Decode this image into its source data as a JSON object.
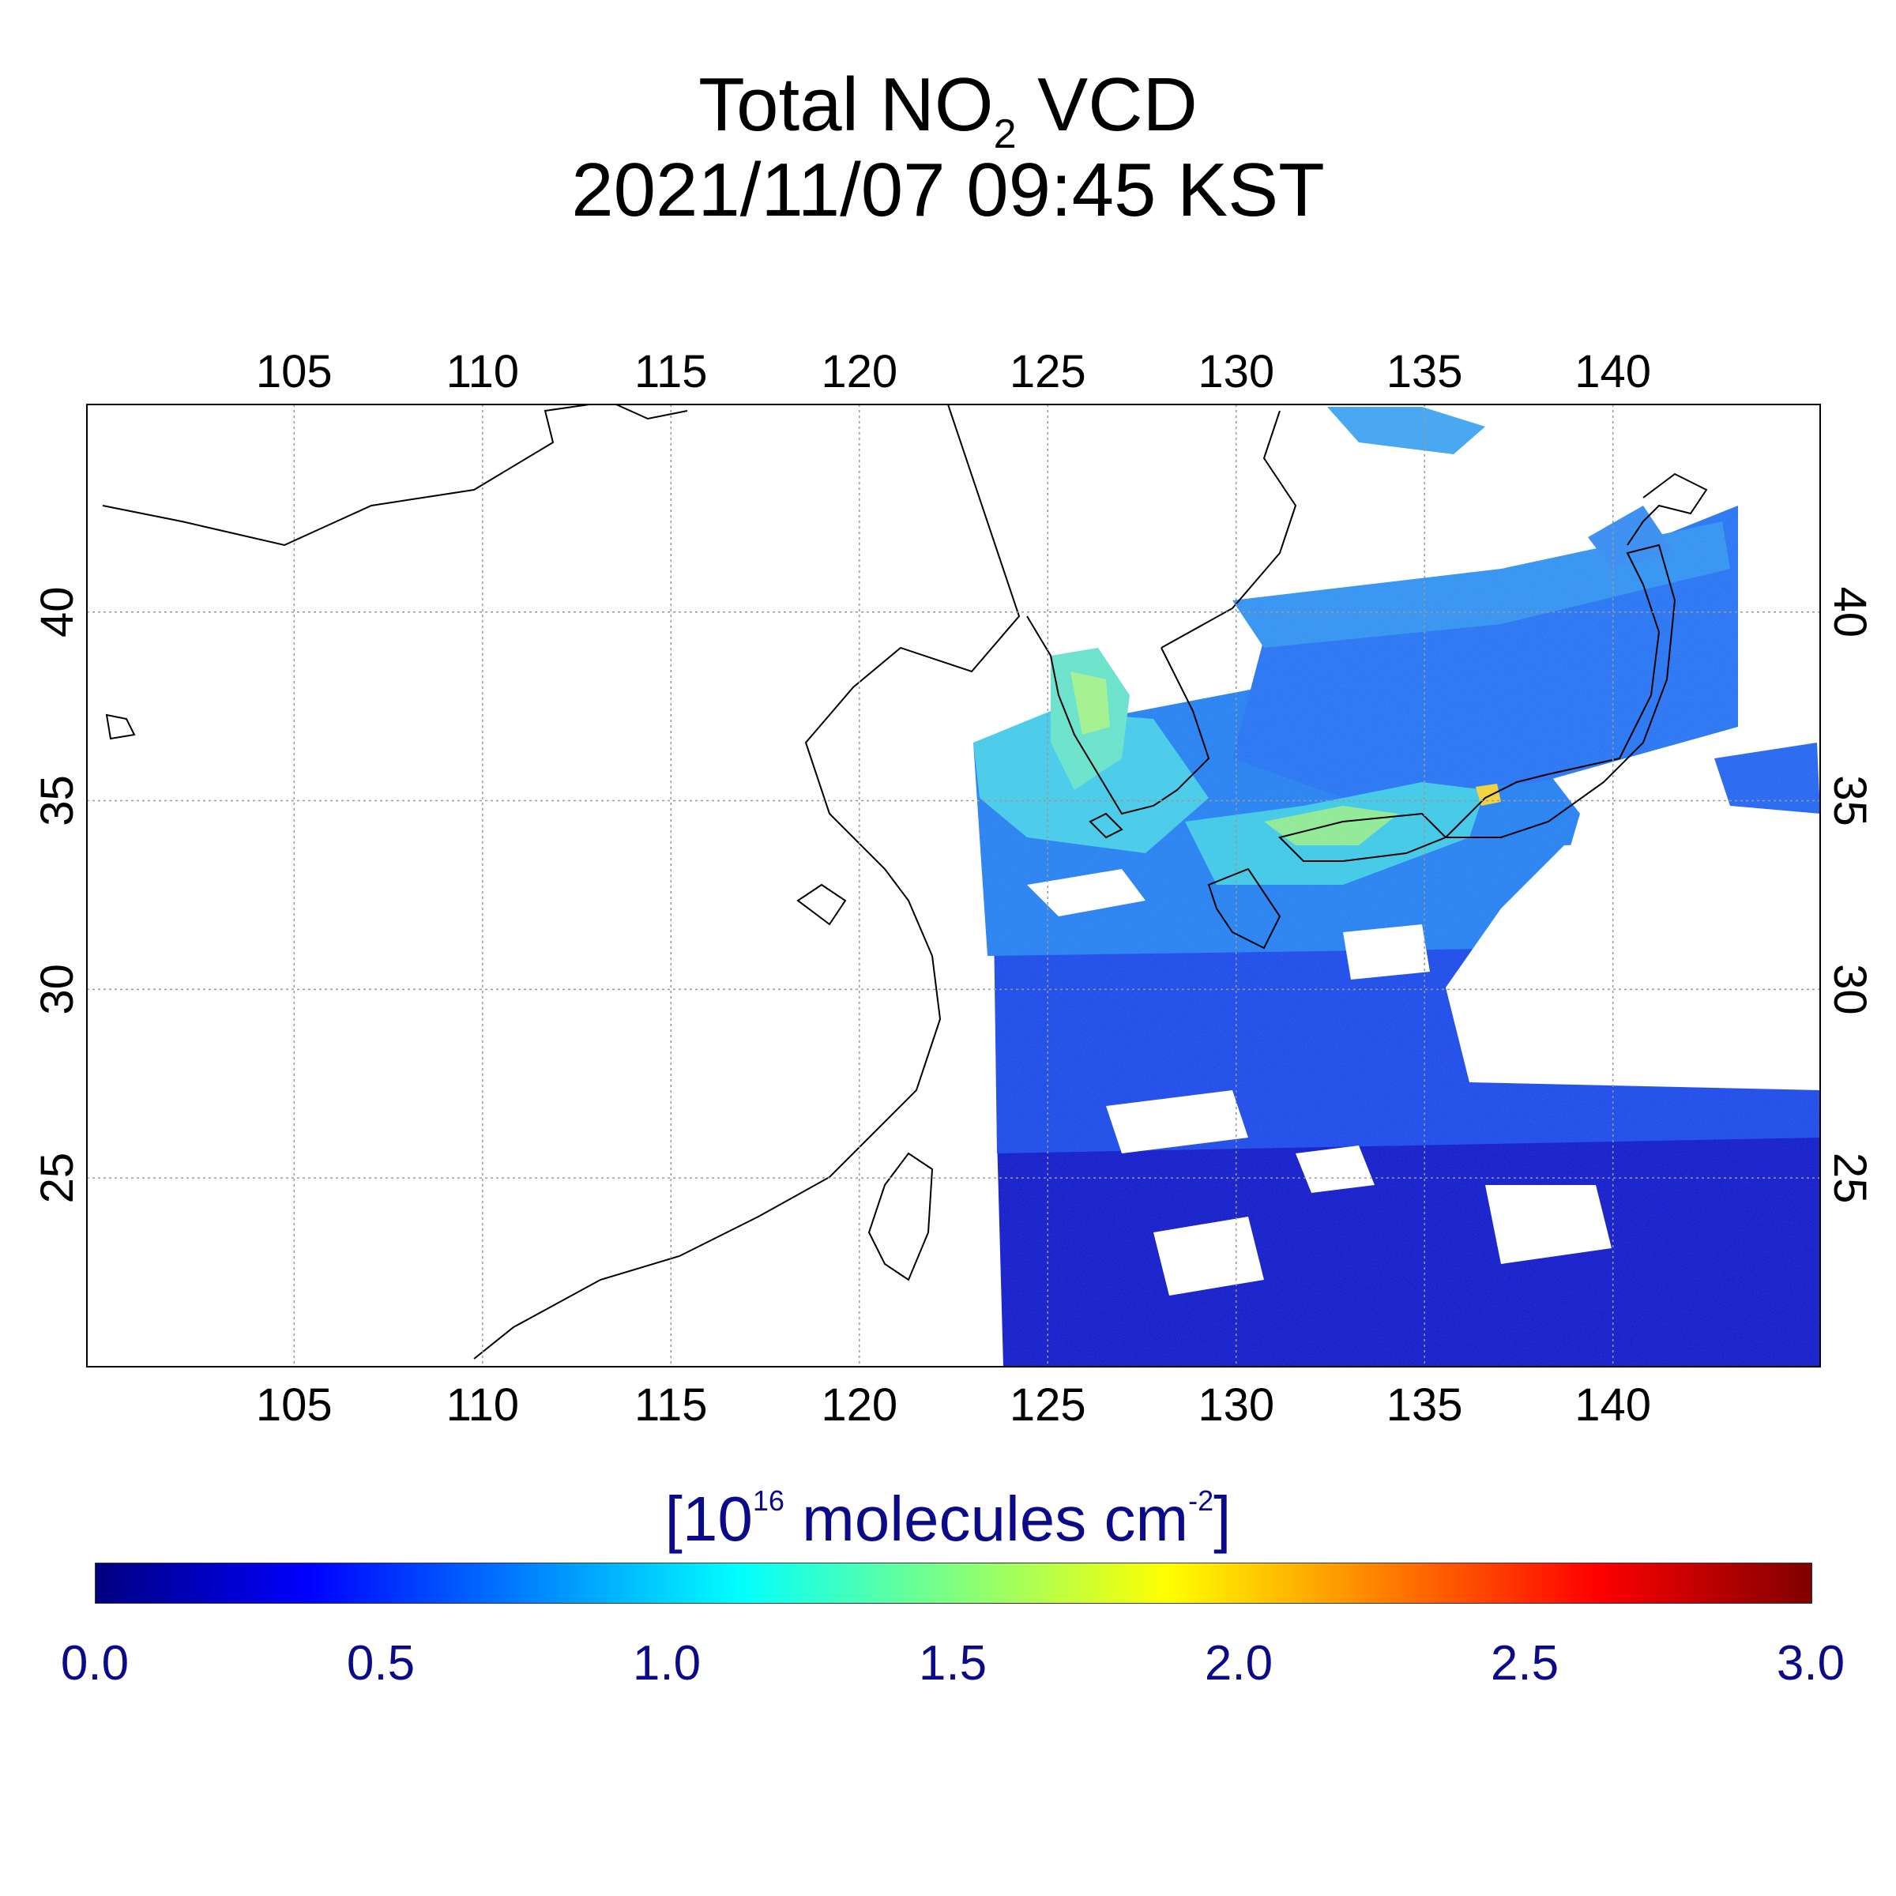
{
  "title": {
    "main": "Total NO",
    "sub": "2",
    "tail": " VCD",
    "datetime": "2021/11/07 09:45 KST"
  },
  "map": {
    "lon_range": [
      99.5,
      145.5
    ],
    "lat_range": [
      20.0,
      45.5
    ],
    "lon_ticks": [
      "105",
      "110",
      "115",
      "120",
      "125",
      "130",
      "135",
      "140"
    ],
    "lon_tick_values": [
      105,
      110,
      115,
      120,
      125,
      130,
      135,
      140
    ],
    "lat_ticks": [
      "25",
      "30",
      "35",
      "40"
    ],
    "lat_tick_values": [
      25,
      30,
      35,
      40
    ],
    "grid": true
  },
  "colorbar": {
    "unit_prefix": "[10",
    "unit_exp": "16",
    "unit_mid": " molecules cm",
    "unit_exp2": "-2",
    "unit_suffix": "]",
    "ticks": [
      "0.0",
      "0.5",
      "1.0",
      "1.5",
      "2.0",
      "2.5",
      "3.0"
    ],
    "range": [
      0.0,
      3.0
    ],
    "colors": [
      "#000080",
      "#0000ff",
      "#0080ff",
      "#00ffff",
      "#80ff80",
      "#ffff00",
      "#ff8000",
      "#ff0000",
      "#800000"
    ]
  }
}
